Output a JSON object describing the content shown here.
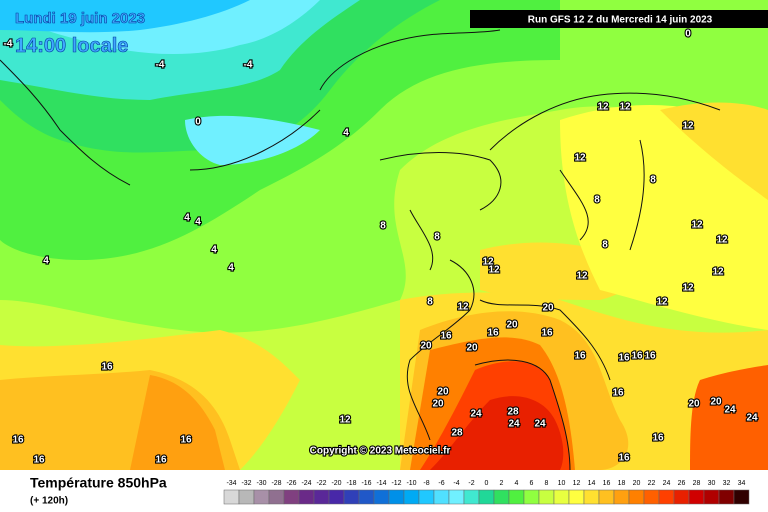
{
  "header": {
    "date": "Lundi 19 juin 2023",
    "time": "14:00 locale",
    "run": "Run GFS 12 Z du Mercredi 14 juin 2023",
    "copyright": "Copyright © 2023 Meteociel.fr"
  },
  "footer": {
    "title": "Température 850hPa",
    "subtitle": "(+ 120h)"
  },
  "legend": {
    "values": [
      -34,
      -32,
      -30,
      -28,
      -26,
      -24,
      -22,
      -20,
      -18,
      -16,
      -14,
      -12,
      -10,
      -8,
      -6,
      -4,
      -2,
      0,
      2,
      4,
      6,
      8,
      10,
      12,
      14,
      16,
      18,
      20,
      22,
      24,
      26,
      28,
      30,
      32,
      34
    ],
    "colors": [
      "#d8d8d8",
      "#b8b8b8",
      "#a890a8",
      "#907090",
      "#804080",
      "#6a2a88",
      "#5a2898",
      "#4828a8",
      "#3040b8",
      "#2058c8",
      "#1070d8",
      "#0090e8",
      "#00aaf4",
      "#20c8ff",
      "#50e0ff",
      "#70f0ff",
      "#40e8d0",
      "#20d898",
      "#30e060",
      "#50f040",
      "#90ff40",
      "#c8ff40",
      "#e8ff40",
      "#ffff40",
      "#ffe030",
      "#ffc020",
      "#ffa010",
      "#ff8000",
      "#ff6000",
      "#ff4000",
      "#e82000",
      "#d00000",
      "#b00000",
      "#800000",
      "#300000"
    ]
  },
  "map_labels": [
    -4,
    -4,
    -4,
    0,
    0,
    4,
    4,
    4,
    4,
    4,
    4,
    8,
    8,
    8,
    8,
    8,
    8,
    12,
    12,
    12,
    12,
    12,
    12,
    12,
    12,
    12,
    12,
    12,
    12,
    12,
    12,
    16,
    16,
    16,
    16,
    16,
    16,
    16,
    16,
    16,
    16,
    16,
    16,
    16,
    16,
    16,
    20,
    20,
    20,
    20,
    20,
    20,
    20,
    20,
    24,
    24,
    24,
    24,
    24,
    28,
    28
  ]
}
